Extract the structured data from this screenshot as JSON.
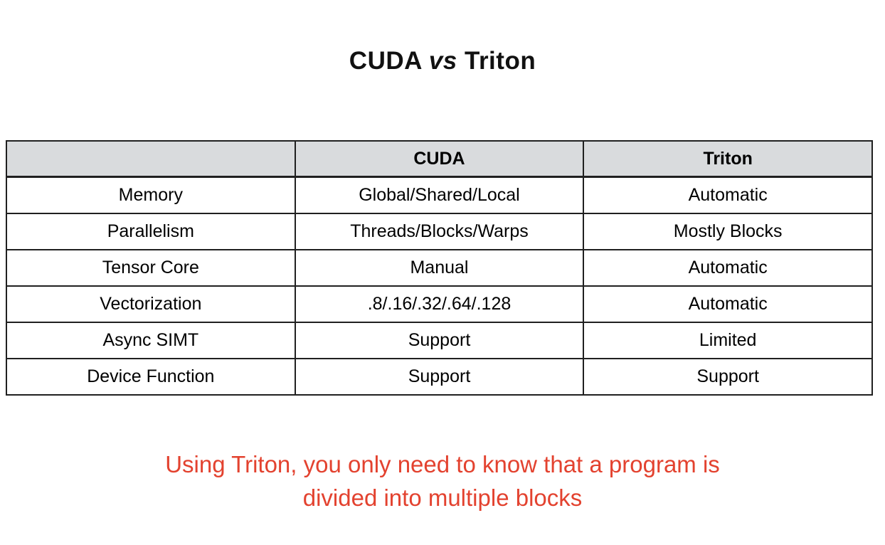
{
  "title": {
    "part1": "CUDA ",
    "vs": "vs",
    "part2": " Triton"
  },
  "table": {
    "headers": [
      "",
      "CUDA",
      "Triton"
    ],
    "rows": [
      {
        "label": "Memory",
        "cuda": "Global/Shared/Local",
        "triton": "Automatic"
      },
      {
        "label": "Parallelism",
        "cuda": "Threads/Blocks/Warps",
        "triton": "Mostly Blocks"
      },
      {
        "label": "Tensor Core",
        "cuda": "Manual",
        "triton": "Automatic"
      },
      {
        "label": "Vectorization",
        "cuda": ".8/.16/.32/.64/.128",
        "triton": "Automatic"
      },
      {
        "label": "Async SIMT",
        "cuda": "Support",
        "triton": "Limited"
      },
      {
        "label": "Device Function",
        "cuda": "Support",
        "triton": "Support"
      }
    ]
  },
  "caption": {
    "line1": "Using Triton, you only need to know that a program is",
    "line2": "divided into multiple blocks",
    "color": "#e3422f"
  },
  "colors": {
    "header_bg": "#d9dbdd",
    "border": "#202020",
    "text": "#000000"
  }
}
